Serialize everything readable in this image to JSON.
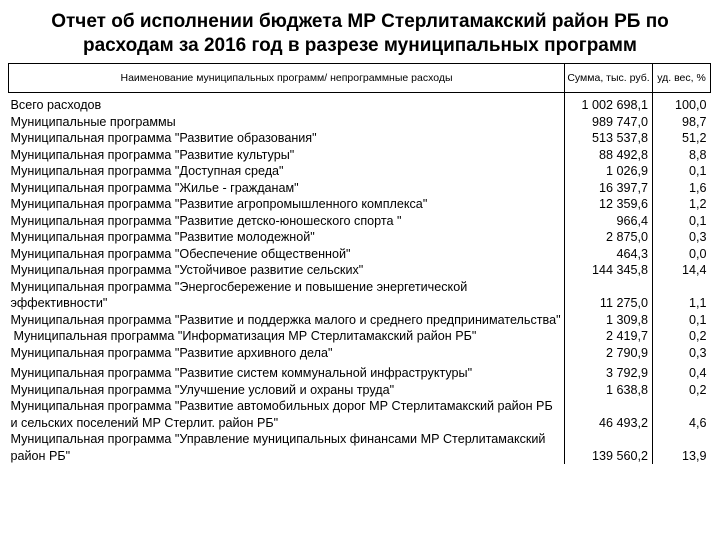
{
  "title": {
    "line1": "Отчет об исполнении бюджета МР Стерлитамакский район РБ по",
    "line2": "расходам за 2016 год в разрезе муниципальных программ"
  },
  "table": {
    "headers": {
      "name": "Наименование муниципальных программ/ непрограммные расходы",
      "sum": "Сумма, тыс. руб.",
      "share": "уд. вес, %"
    },
    "rows": [
      {
        "name": "Всего расходов",
        "sum": "1 002 698,1",
        "share": "100,0"
      },
      {
        "name": "Муниципальные программы",
        "sum": "989 747,0",
        "share": "98,7"
      },
      {
        "name": "Муниципальная программа \"Развитие образования\"",
        "sum": "513 537,8",
        "share": "51,2"
      },
      {
        "name": "Муниципальная программа \"Развитие культуры\"",
        "sum": "88 492,8",
        "share": "8,8"
      },
      {
        "name": "Муниципальная программа \"Доступная среда\"",
        "sum": "1 026,9",
        "share": "0,1"
      },
      {
        "name": "Муниципальная программа \"Жилье - гражданам\"",
        "sum": "16 397,7",
        "share": "1,6"
      },
      {
        "name": "Муниципальная программа \"Развитие агропромышленного комплекса\"",
        "sum": "12 359,6",
        "share": "1,2"
      },
      {
        "name": "Муниципальная программа \"Развитие детско-юношеского спорта \"",
        "sum": "966,4",
        "share": "0,1"
      },
      {
        "name": "Муниципальная программа \"Развитие молодежной\"",
        "sum": "2 875,0",
        "share": "0,3"
      },
      {
        "name": "Муниципальная программа \"Обеспечение общественной\"",
        "sum": "464,3",
        "share": "0,0"
      },
      {
        "name": "Муниципальная программа \"Устойчивое развитие сельских\"",
        "sum": "144 345,8",
        "share": "14,4"
      },
      {
        "name": "Муниципальная программа \"Энергосбережение и повышение энергетической эффективности\"",
        "sum": "11 275,0",
        "share": "1,1"
      },
      {
        "name": "Муниципальная программа \"Развитие и поддержка малого и среднего предпринимательства\"",
        "sum": "1 309,8",
        "share": "0,1"
      },
      {
        "name": "Муниципальная программа \"Информатизация МР Стерлитамакский район РБ\"",
        "sum": "2 419,7",
        "share": "0,2"
      },
      {
        "name": "Муниципальная программа \"Развитие архивного дела\"",
        "sum": "2 790,9",
        "share": "0,3"
      },
      {
        "name": "Муниципальная программа \"Развитие систем коммунальной инфраструктуры\"",
        "sum": "3 792,9",
        "share": "0,4"
      },
      {
        "name": "Муниципальная программа \"Улучшение условий и охраны труда\"",
        "sum": "1 638,8",
        "share": "0,2"
      },
      {
        "name": "Муниципальная программа \"Развитие автомобильных дорог МР Стерлитамакский район РБ и сельских поселений МР Стерлит. район РБ\"",
        "sum": "46 493,2",
        "share": "4,6"
      },
      {
        "name": "Муниципальная программа \"Управление муниципальных финансами МР Стерлитамакский район РБ\"",
        "sum": "139 560,2",
        "share": "13,9"
      }
    ]
  }
}
